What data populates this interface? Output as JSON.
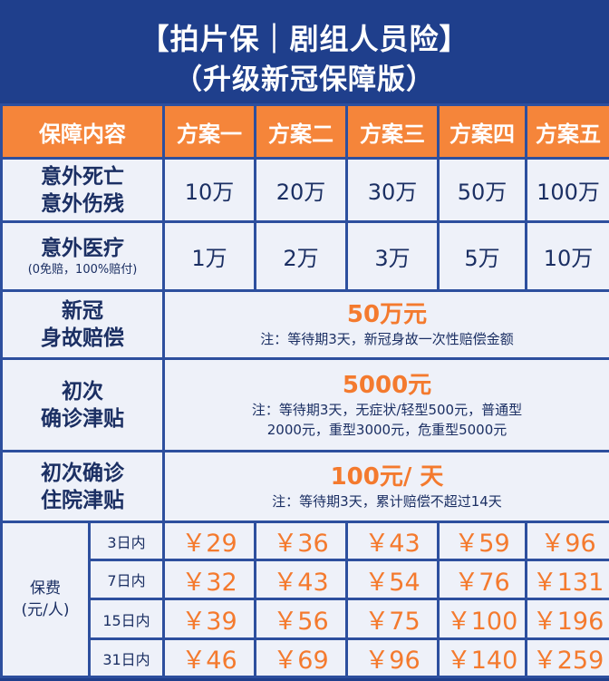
{
  "title": {
    "line1": "【拍片保｜剧组人员险】",
    "line2": "（升级新冠保障版）"
  },
  "header": {
    "col0": "保障内容",
    "plans": [
      "方案一",
      "方案二",
      "方案三",
      "方案四",
      "方案五"
    ]
  },
  "rows": {
    "death": {
      "label1": "意外死亡",
      "label2": "意外伤残",
      "values": [
        "10万",
        "20万",
        "30万",
        "50万",
        "100万"
      ]
    },
    "medical": {
      "label1": "意外医疗",
      "label2": "(0免赔，100%赔付)",
      "values": [
        "1万",
        "2万",
        "3万",
        "5万",
        "10万"
      ]
    },
    "covid_death": {
      "label1": "新冠",
      "label2": "身故赔偿",
      "amount": "50万元",
      "note": "注：等待期3天，新冠身故一次性赔偿金额"
    },
    "covid_diag": {
      "label1": "初次",
      "label2": "确诊津贴",
      "amount": "5000元",
      "note1": "注：等待期3天，无症状/轻型500元，普通型",
      "note2": "2000元，重型3000元，危重型5000元"
    },
    "covid_hosp": {
      "label1": "初次确诊",
      "label2": "住院津贴",
      "amount": "100元/ 天",
      "note": "注：等待期3天，累计赔偿不超过14天"
    }
  },
  "premium": {
    "label1": "保费",
    "label2": "(元/人)",
    "periods": [
      {
        "period": "3日内",
        "prices": [
          "￥29",
          "￥36",
          "￥43",
          "￥59",
          "￥96"
        ]
      },
      {
        "period": "7日内",
        "prices": [
          "￥32",
          "￥43",
          "￥54",
          "￥76",
          "￥131"
        ]
      },
      {
        "period": "15日内",
        "prices": [
          "￥39",
          "￥56",
          "￥75",
          "￥100",
          "￥196"
        ]
      },
      {
        "period": "31日内",
        "prices": [
          "￥46",
          "￥69",
          "￥96",
          "￥140",
          "￥259"
        ]
      }
    ]
  }
}
